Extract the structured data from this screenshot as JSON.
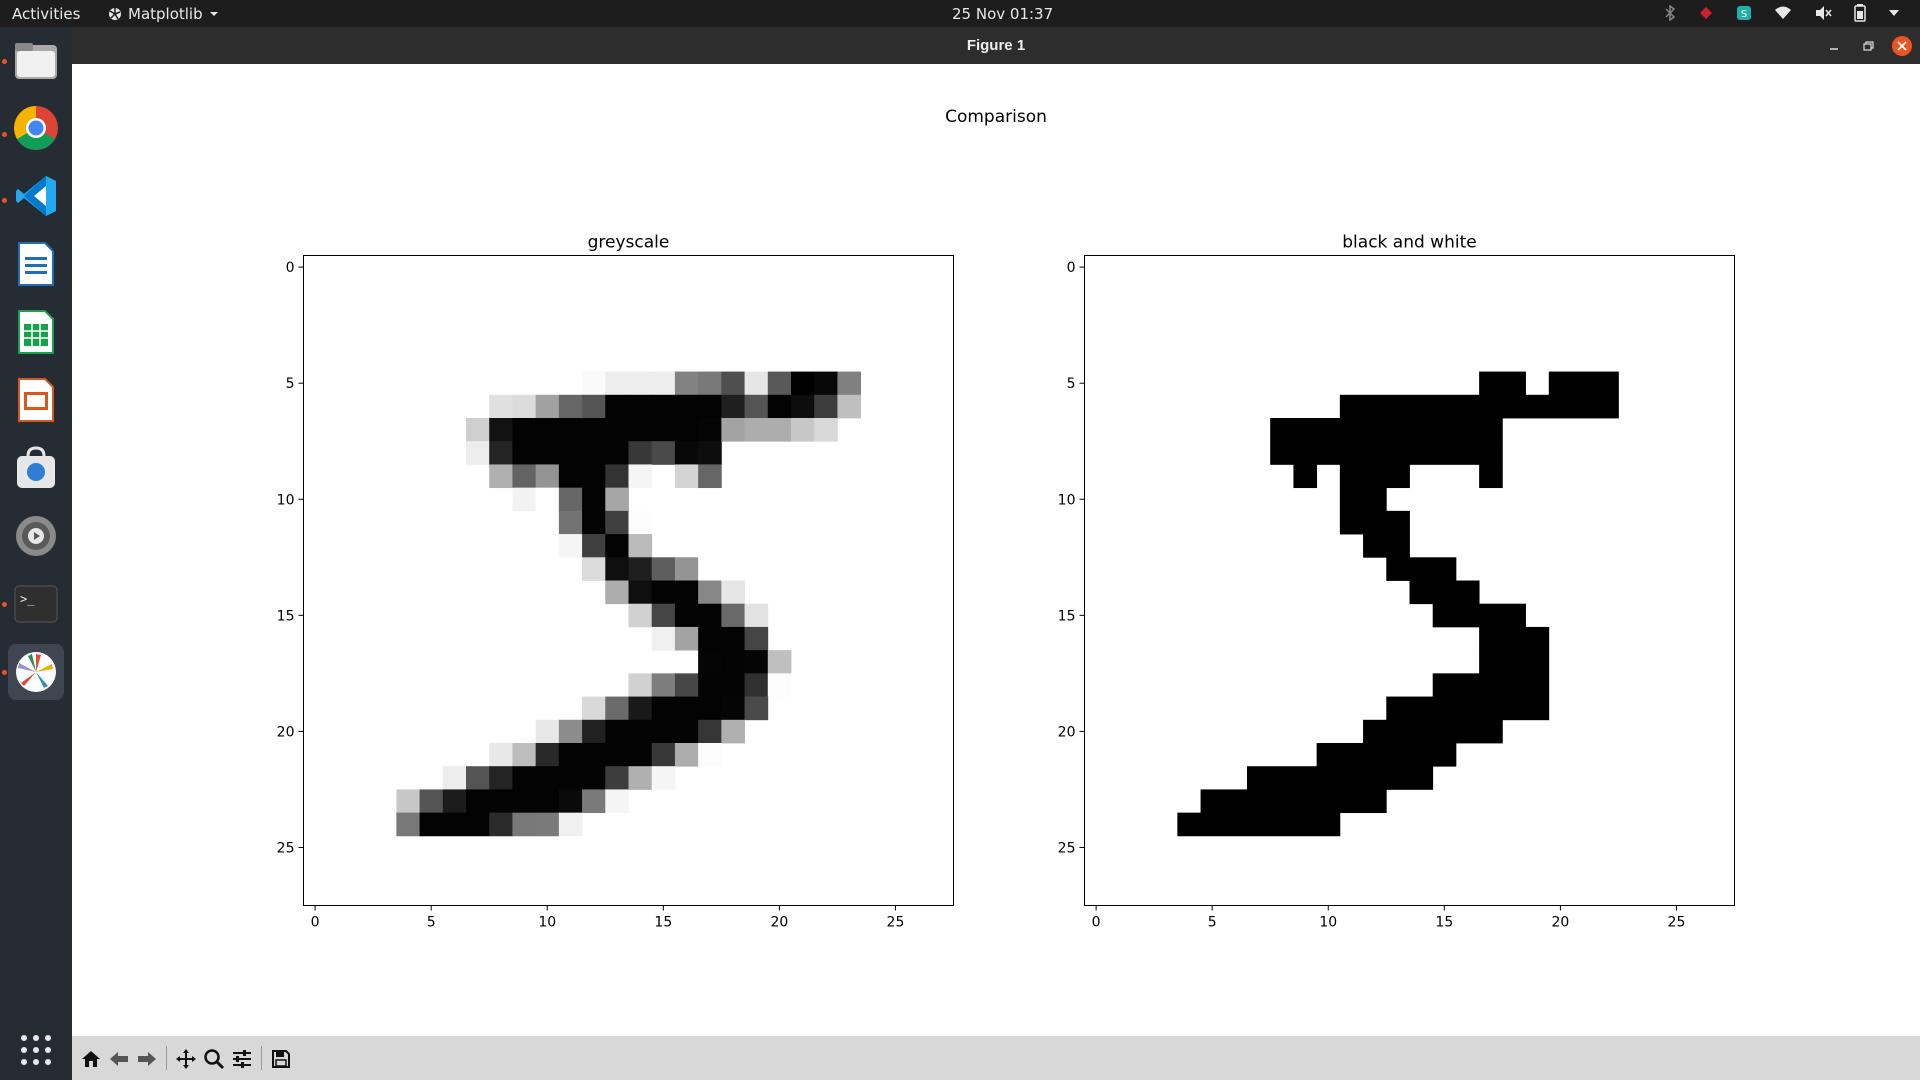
{
  "topbar": {
    "activities": "Activities",
    "app_name": "Matplotlib",
    "clock": "25 Nov  01:37"
  },
  "window": {
    "title": "Figure 1"
  },
  "figure": {
    "suptitle": "Comparison",
    "axes": [
      {
        "title": "greyscale"
      },
      {
        "title": "black and white"
      }
    ]
  },
  "chart_data": [
    {
      "type": "heatmap",
      "title": "greyscale",
      "suptitle": "Comparison",
      "colormap": "Greys",
      "grid_size": [
        28,
        28
      ],
      "xlim": [
        -0.5,
        27.5
      ],
      "ylim": [
        27.5,
        -0.5
      ],
      "xticks": [
        0,
        5,
        10,
        15,
        20,
        25
      ],
      "yticks": [
        0,
        5,
        10,
        15,
        20,
        25
      ],
      "xlabel": "",
      "ylabel": "",
      "rows": {
        "5": {
          "12": 0.02,
          "13": 0.07,
          "14": 0.07,
          "15": 0.07,
          "16": 0.49,
          "17": 0.53,
          "18": 0.69,
          "19": 0.1,
          "20": 0.65,
          "21": 1.0,
          "22": 0.97,
          "23": 0.5
        },
        "6": {
          "8": 0.12,
          "9": 0.14,
          "10": 0.37,
          "11": 0.6,
          "12": 0.67,
          "13": 0.99,
          "14": 0.99,
          "15": 0.99,
          "16": 0.99,
          "17": 0.99,
          "18": 0.88,
          "19": 0.67,
          "20": 0.99,
          "21": 0.95,
          "22": 0.76,
          "23": 0.25
        },
        "7": {
          "7": 0.19,
          "8": 0.93,
          "9": 0.99,
          "10": 0.99,
          "11": 0.99,
          "12": 0.99,
          "13": 0.99,
          "14": 0.99,
          "15": 0.99,
          "16": 0.99,
          "17": 0.98,
          "18": 0.36,
          "19": 0.32,
          "20": 0.32,
          "21": 0.22,
          "22": 0.15
        },
        "8": {
          "7": 0.07,
          "8": 0.86,
          "9": 0.99,
          "10": 0.99,
          "11": 0.99,
          "12": 0.99,
          "13": 0.99,
          "14": 0.78,
          "15": 0.71,
          "16": 0.97,
          "17": 0.95
        },
        "9": {
          "8": 0.31,
          "9": 0.61,
          "10": 0.42,
          "11": 0.99,
          "12": 0.99,
          "13": 0.8,
          "14": 0.04,
          "16": 0.17,
          "17": 0.6
        },
        "10": {
          "9": 0.05,
          "10": 0.0,
          "11": 0.6,
          "12": 0.99,
          "13": 0.35
        },
        "11": {
          "11": 0.55,
          "12": 0.99,
          "13": 0.75,
          "14": 0.01
        },
        "12": {
          "11": 0.04,
          "12": 0.75,
          "13": 0.99,
          "14": 0.27
        },
        "13": {
          "12": 0.14,
          "13": 0.94,
          "14": 0.88,
          "15": 0.63,
          "16": 0.42,
          "17": 0.0
        },
        "14": {
          "13": 0.32,
          "14": 0.94,
          "15": 0.99,
          "16": 0.99,
          "17": 0.47,
          "18": 0.1
        },
        "15": {
          "14": 0.18,
          "15": 0.73,
          "16": 0.99,
          "17": 0.99,
          "18": 0.59,
          "19": 0.11
        },
        "16": {
          "15": 0.06,
          "16": 0.36,
          "17": 0.99,
          "18": 0.99,
          "19": 0.73
        },
        "17": {
          "17": 0.98,
          "18": 0.99,
          "19": 0.98,
          "20": 0.25
        },
        "18": {
          "14": 0.18,
          "15": 0.51,
          "16": 0.72,
          "17": 0.99,
          "18": 0.99,
          "19": 0.81,
          "20": 0.01
        },
        "19": {
          "12": 0.15,
          "13": 0.58,
          "14": 0.9,
          "15": 0.99,
          "16": 0.99,
          "17": 0.99,
          "18": 0.98,
          "19": 0.71
        },
        "20": {
          "10": 0.09,
          "11": 0.45,
          "12": 0.87,
          "13": 0.99,
          "14": 0.99,
          "15": 0.99,
          "16": 0.99,
          "17": 0.79,
          "18": 0.31
        },
        "21": {
          "8": 0.09,
          "9": 0.26,
          "10": 0.84,
          "11": 0.99,
          "12": 0.99,
          "13": 0.99,
          "14": 0.99,
          "15": 0.78,
          "16": 0.32,
          "17": 0.01
        },
        "22": {
          "6": 0.07,
          "7": 0.67,
          "8": 0.86,
          "9": 0.99,
          "10": 0.99,
          "11": 0.99,
          "12": 0.99,
          "13": 0.76,
          "14": 0.31,
          "15": 0.04
        },
        "23": {
          "4": 0.22,
          "5": 0.67,
          "6": 0.89,
          "7": 0.99,
          "8": 0.99,
          "9": 0.99,
          "10": 0.99,
          "11": 0.96,
          "12": 0.52,
          "13": 0.04
        },
        "24": {
          "4": 0.53,
          "5": 0.99,
          "6": 0.99,
          "7": 0.99,
          "8": 0.83,
          "9": 0.53,
          "10": 0.52,
          "11": 0.06
        }
      }
    },
    {
      "type": "heatmap",
      "title": "black and white",
      "colormap": "Greys (binary)",
      "grid_size": [
        28,
        28
      ],
      "xlim": [
        -0.5,
        27.5
      ],
      "ylim": [
        27.5,
        -0.5
      ],
      "xticks": [
        0,
        5,
        10,
        15,
        20,
        25
      ],
      "yticks": [
        0,
        5,
        10,
        15,
        20,
        25
      ],
      "xlabel": "",
      "ylabel": "",
      "black_pixel_runs": {
        "5": [
          [
            17,
            18
          ],
          [
            20,
            22
          ]
        ],
        "6": [
          [
            11,
            22
          ]
        ],
        "7": [
          [
            8,
            17
          ]
        ],
        "8": [
          [
            8,
            17
          ]
        ],
        "9": [
          [
            9,
            9
          ],
          [
            11,
            13
          ],
          [
            17,
            17
          ]
        ],
        "10": [
          [
            11,
            12
          ]
        ],
        "11": [
          [
            11,
            13
          ]
        ],
        "12": [
          [
            12,
            13
          ]
        ],
        "13": [
          [
            13,
            15
          ]
        ],
        "14": [
          [
            14,
            16
          ]
        ],
        "15": [
          [
            15,
            18
          ]
        ],
        "16": [
          [
            17,
            19
          ]
        ],
        "17": [
          [
            17,
            19
          ]
        ],
        "18": [
          [
            15,
            19
          ]
        ],
        "19": [
          [
            13,
            19
          ]
        ],
        "20": [
          [
            12,
            17
          ]
        ],
        "21": [
          [
            10,
            15
          ]
        ],
        "22": [
          [
            7,
            14
          ]
        ],
        "23": [
          [
            5,
            12
          ]
        ],
        "24": [
          [
            4,
            10
          ]
        ]
      }
    }
  ],
  "toolbar": {
    "buttons": [
      "home-icon",
      "back-icon",
      "forward-icon",
      "pan-icon",
      "zoom-icon",
      "configure-subplots-icon",
      "save-icon"
    ]
  }
}
